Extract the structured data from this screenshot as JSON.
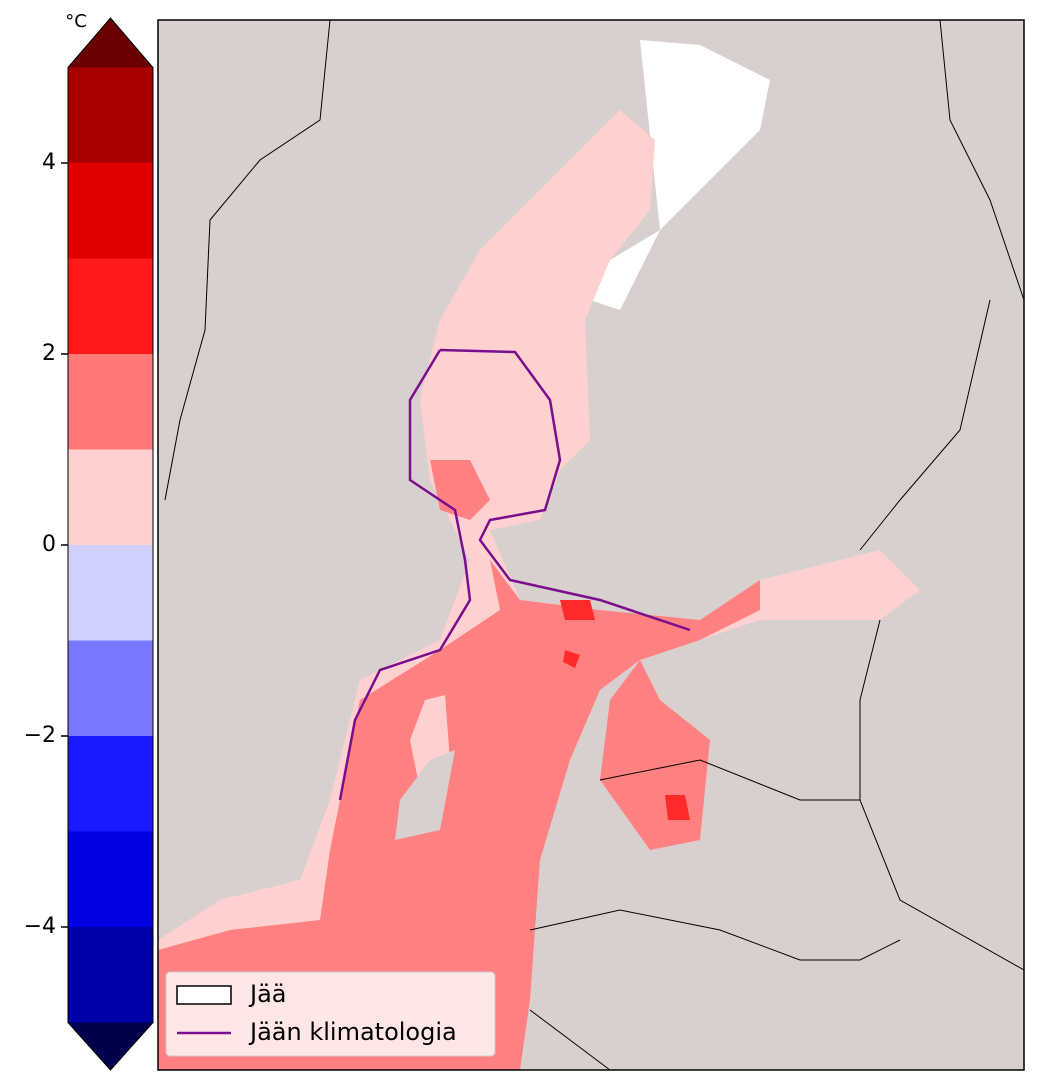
{
  "colorbar": {
    "unit": "°C",
    "lim": [
      -5,
      5
    ],
    "bounds": [
      -5,
      -4,
      -3,
      -2,
      -1,
      0,
      1,
      2,
      3,
      4,
      5
    ],
    "colors": [
      "#0000a8",
      "#0000e0",
      "#1a1aff",
      "#7777ff",
      "#d0d0ff",
      "#ffd0d0",
      "#ff7777",
      "#ff1a1a",
      "#e00000",
      "#a80000"
    ],
    "extend_colors": {
      "min": "#00004d",
      "max": "#6b0000"
    },
    "ticks": [
      {
        "value": -4,
        "label": "−4"
      },
      {
        "value": -2,
        "label": "−2"
      },
      0,
      2,
      4
    ]
  },
  "legend": {
    "items": [
      {
        "label": "Jää",
        "fill": "#ffffff",
        "edge": "#000000"
      },
      {
        "label": "Jään klimatologia",
        "color": "#7b0e8c"
      }
    ]
  }
}
